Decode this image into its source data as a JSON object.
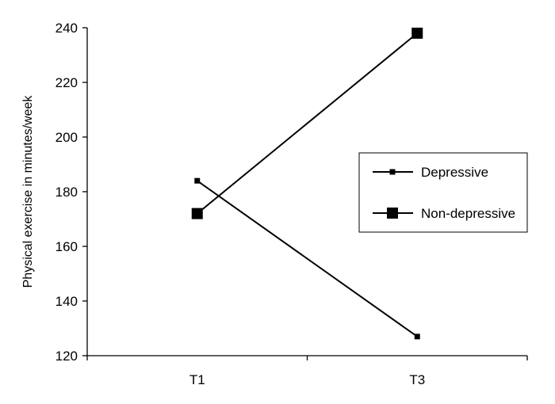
{
  "chart_data": {
    "type": "line",
    "title": "",
    "xlabel": "",
    "ylabel": "Physical exercise in minutes/week",
    "categories": [
      "T1",
      "T3"
    ],
    "ylim": [
      120,
      240
    ],
    "yticks": [
      120,
      140,
      160,
      180,
      200,
      220,
      240
    ],
    "grid": false,
    "legend_position": "right",
    "series": [
      {
        "name": "Depressive",
        "values": [
          184,
          127
        ],
        "marker": "small-square",
        "color": "#000000"
      },
      {
        "name": "Non-depressive",
        "values": [
          172,
          238
        ],
        "marker": "large-square",
        "color": "#000000"
      }
    ]
  }
}
